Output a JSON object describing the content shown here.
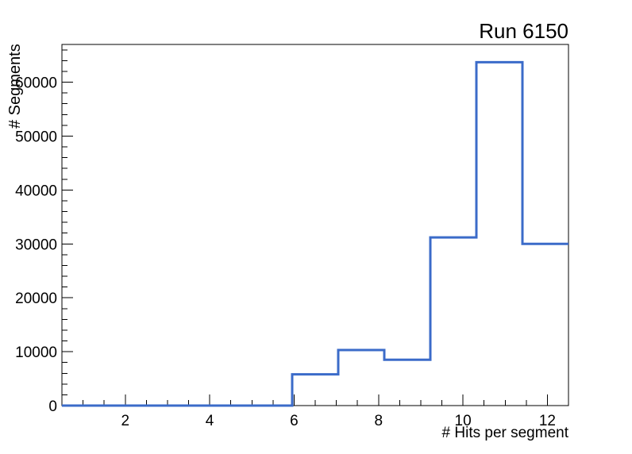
{
  "chart_title": "Run 6150",
  "chart_data": {
    "type": "histogram-step",
    "title": "Run 6150",
    "xlabel": "# Hits per segment",
    "ylabel": "# Segments",
    "xlim": [
      0.5,
      12.5
    ],
    "ylim": [
      0,
      67000
    ],
    "bin_edges": [
      0.5,
      1.5909,
      2.6818,
      3.7727,
      4.8636,
      5.9545,
      7.0455,
      8.1364,
      9.2273,
      10.3182,
      11.4091,
      12.5
    ],
    "bin_counts": [
      0,
      0,
      0,
      0,
      0,
      5800,
      10300,
      8500,
      31200,
      63700,
      30000
    ],
    "x_major_ticks": [
      2,
      4,
      6,
      8,
      10,
      12
    ],
    "x_tick_labels": [
      "2",
      "4",
      "6",
      "8",
      "10",
      "12"
    ],
    "x_minor_tick_step": 0.5,
    "y_major_ticks": [
      0,
      10000,
      20000,
      30000,
      40000,
      50000,
      60000
    ],
    "y_tick_labels": [
      "0",
      "10000",
      "20000",
      "30000",
      "40000",
      "50000",
      "60000"
    ],
    "y_minor_tick_step": 2000,
    "grid": false,
    "legend": null,
    "line_color": "#3b6bc9",
    "axis_color": "#000000",
    "background_color": "#ffffff"
  }
}
